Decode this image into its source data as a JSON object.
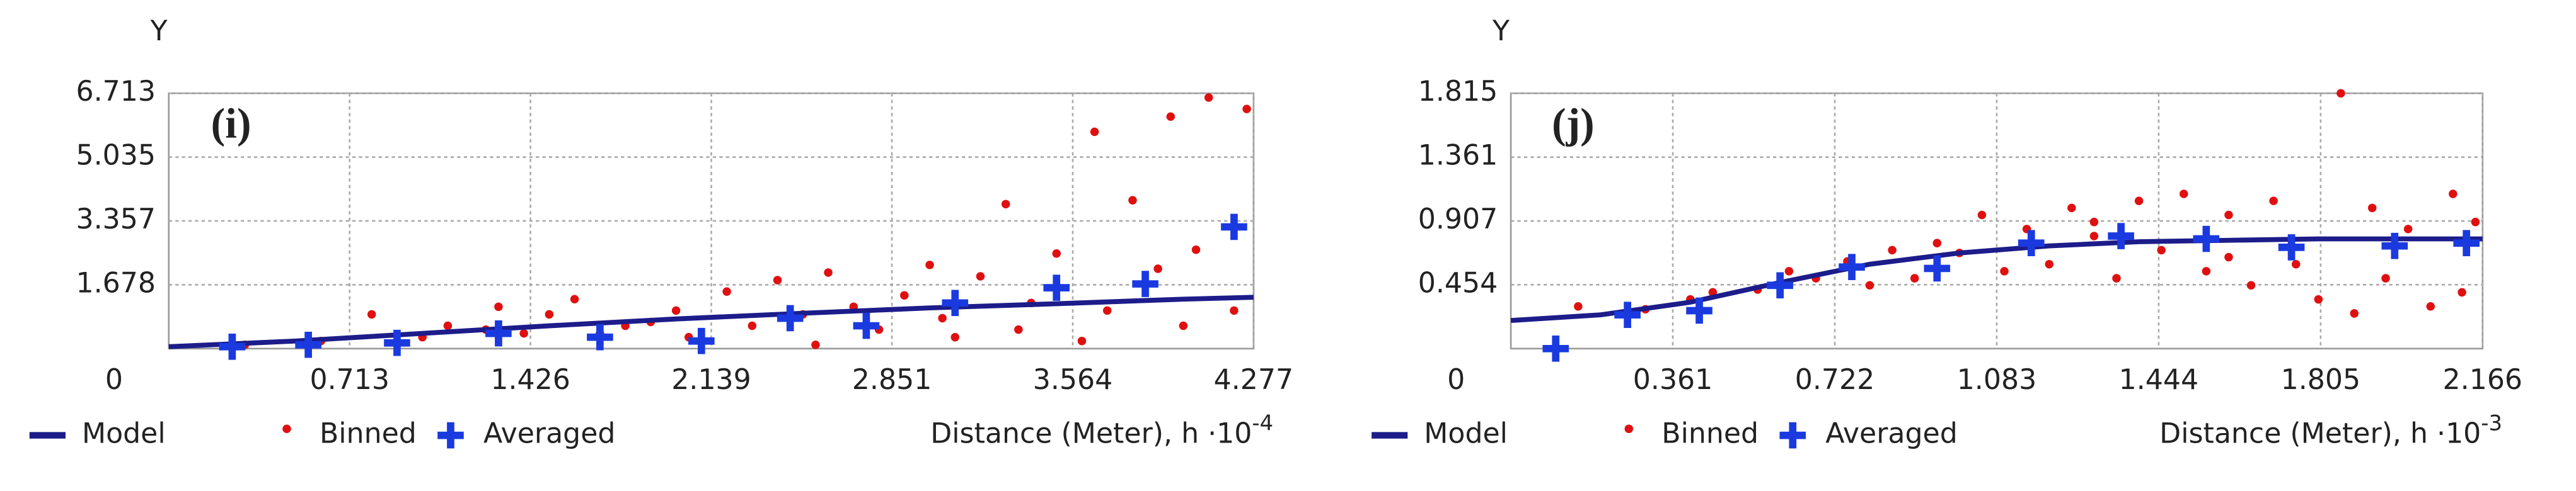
{
  "chart_data": [
    {
      "type": "scatter",
      "title": "(i)",
      "y_label": "Y",
      "x_label": "Distance (Meter), h ·10",
      "x_exponent": "-4",
      "xlim": [
        0,
        4.277
      ],
      "ylim": [
        0,
        6.713
      ],
      "xticks": [
        0.713,
        1.426,
        2.139,
        2.851,
        3.564,
        4.277
      ],
      "yticks": [
        0,
        1.678,
        3.357,
        5.035,
        6.713
      ],
      "grid": true,
      "series": [
        {
          "name": "Model",
          "marker": "line",
          "color": "#1c1c8a",
          "x": [
            0,
            0.5,
            1,
            1.5,
            2,
            2.5,
            3,
            3.5,
            4,
            4.277
          ],
          "values": [
            0.05,
            0.2,
            0.4,
            0.6,
            0.78,
            0.93,
            1.07,
            1.18,
            1.3,
            1.35
          ]
        },
        {
          "name": "Binned",
          "marker": "dot",
          "color": "#e01010",
          "x": [
            0.3,
            0.6,
            0.8,
            1.0,
            1.1,
            1.25,
            1.3,
            1.4,
            1.5,
            1.6,
            1.7,
            1.8,
            1.9,
            2.0,
            2.05,
            2.2,
            2.3,
            2.4,
            2.5,
            2.55,
            2.6,
            2.7,
            2.8,
            2.9,
            3.0,
            3.05,
            3.1,
            3.2,
            3.3,
            3.35,
            3.4,
            3.5,
            3.6,
            3.65,
            3.7,
            3.8,
            3.9,
            3.95,
            4.0,
            4.05,
            4.1,
            4.2,
            4.25
          ],
          "values": [
            0.1,
            0.2,
            0.9,
            0.3,
            0.6,
            0.5,
            1.1,
            0.4,
            0.9,
            1.3,
            0.4,
            0.6,
            0.7,
            1.0,
            0.3,
            1.5,
            0.6,
            1.8,
            0.9,
            0.1,
            2.0,
            1.1,
            0.5,
            1.4,
            2.2,
            0.8,
            0.3,
            1.9,
            3.8,
            0.5,
            1.2,
            2.5,
            0.2,
            5.7,
            1.0,
            3.9,
            2.1,
            6.1,
            0.6,
            2.6,
            6.6,
            1.0,
            6.3
          ]
        },
        {
          "name": "Averaged",
          "marker": "plus",
          "color": "#1a3ae0",
          "x": [
            0.25,
            0.55,
            0.9,
            1.3,
            1.7,
            2.1,
            2.45,
            2.75,
            3.1,
            3.5,
            3.85,
            4.2
          ],
          "values": [
            0.05,
            0.1,
            0.15,
            0.4,
            0.3,
            0.2,
            0.8,
            0.6,
            1.2,
            1.6,
            1.7,
            3.2
          ]
        }
      ]
    },
    {
      "type": "scatter",
      "title": "(j)",
      "y_label": "Y",
      "x_label": "Distance (Meter), h ·10",
      "x_exponent": "-3",
      "xlim": [
        0,
        2.166
      ],
      "ylim": [
        0,
        1.815
      ],
      "xticks": [
        0.361,
        0.722,
        1.083,
        1.444,
        1.805,
        2.166
      ],
      "yticks": [
        0,
        0.454,
        0.907,
        1.361,
        1.815
      ],
      "grid": true,
      "series": [
        {
          "name": "Model",
          "marker": "line",
          "color": "#1c1c8a",
          "x": [
            0,
            0.2,
            0.4,
            0.6,
            0.8,
            1.0,
            1.2,
            1.4,
            1.6,
            1.8,
            2.0,
            2.166
          ],
          "values": [
            0.2,
            0.24,
            0.33,
            0.47,
            0.6,
            0.68,
            0.73,
            0.76,
            0.77,
            0.78,
            0.78,
            0.78
          ]
        },
        {
          "name": "Binned",
          "marker": "dot",
          "color": "#e01010",
          "x": [
            0.15,
            0.3,
            0.4,
            0.45,
            0.55,
            0.62,
            0.68,
            0.75,
            0.8,
            0.85,
            0.9,
            0.95,
            1.0,
            1.05,
            1.1,
            1.15,
            1.2,
            1.25,
            1.3,
            1.35,
            1.4,
            1.45,
            1.5,
            1.55,
            1.6,
            1.65,
            1.7,
            1.75,
            1.8,
            1.85,
            1.88,
            1.92,
            1.95,
            2.0,
            2.05,
            2.1,
            2.15,
            2.12,
            1.6,
            1.3
          ],
          "values": [
            0.3,
            0.28,
            0.35,
            0.4,
            0.42,
            0.55,
            0.5,
            0.62,
            0.45,
            0.7,
            0.5,
            0.75,
            0.68,
            0.95,
            0.55,
            0.85,
            0.6,
            1.0,
            0.9,
            0.5,
            1.05,
            0.7,
            1.1,
            0.55,
            0.95,
            0.45,
            1.05,
            0.6,
            0.35,
            1.815,
            0.25,
            1.0,
            0.5,
            0.85,
            0.3,
            1.1,
            0.9,
            0.4,
            0.65,
            0.8
          ]
        },
        {
          "name": "Averaged",
          "marker": "plus",
          "color": "#1a3ae0",
          "x": [
            0.1,
            0.26,
            0.42,
            0.6,
            0.76,
            0.95,
            1.16,
            1.36,
            1.55,
            1.74,
            1.97,
            2.13
          ],
          "values": [
            0,
            0.24,
            0.27,
            0.45,
            0.58,
            0.57,
            0.75,
            0.8,
            0.78,
            0.72,
            0.73,
            0.75
          ]
        }
      ]
    }
  ]
}
